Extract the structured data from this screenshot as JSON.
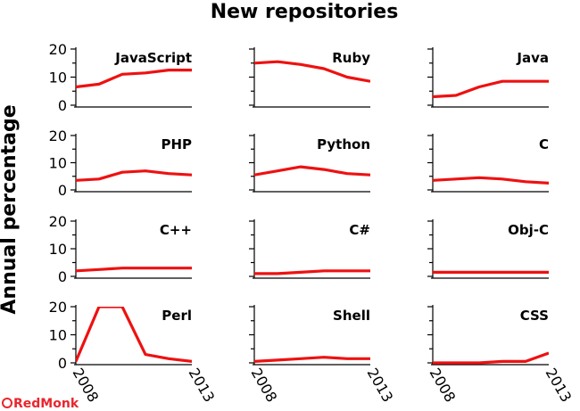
{
  "title": "New repositories",
  "ylabel": "Annual percentage",
  "brand": {
    "logo_text": "RedMonk",
    "logo_color": "#e8262d"
  },
  "colors": {
    "line": "#ee1111",
    "axis": "#000000",
    "text": "#000000"
  },
  "chart_data": {
    "type": "line",
    "layout": "small-multiples 4 rows x 3 columns",
    "x": [
      2008,
      2009,
      2010,
      2011,
      2012,
      2013
    ],
    "x_tick_labels": [
      "2008",
      "2013"
    ],
    "xlim": [
      2008,
      2013
    ],
    "ylim": [
      0,
      20
    ],
    "y_tick_labels": [
      "0",
      "10",
      "20"
    ],
    "grid": false,
    "panels": [
      {
        "name": "JavaScript",
        "values": [
          6.5,
          7.5,
          11,
          11.5,
          12.5,
          12.5
        ]
      },
      {
        "name": "Ruby",
        "values": [
          15,
          15.5,
          14.5,
          13,
          10,
          8.5
        ]
      },
      {
        "name": "Java",
        "values": [
          3,
          3.5,
          6.5,
          8.5,
          8.5,
          8.5
        ]
      },
      {
        "name": "PHP",
        "values": [
          3.5,
          4,
          6.5,
          7,
          6,
          5.5
        ]
      },
      {
        "name": "Python",
        "values": [
          5.5,
          7,
          8.5,
          7.5,
          6,
          5.5
        ]
      },
      {
        "name": "C",
        "values": [
          3.5,
          4,
          4.5,
          4,
          3,
          2.5
        ]
      },
      {
        "name": "C++",
        "values": [
          2,
          2.5,
          3,
          3,
          3,
          3
        ]
      },
      {
        "name": "C#",
        "values": [
          1,
          1,
          1.5,
          2,
          2,
          2
        ]
      },
      {
        "name": "Obj-C",
        "values": [
          1.5,
          1.5,
          1.5,
          1.5,
          1.5,
          1.5
        ]
      },
      {
        "name": "Perl",
        "values": [
          0.5,
          20,
          20,
          3,
          1.5,
          0.5
        ]
      },
      {
        "name": "Shell",
        "values": [
          0.5,
          1,
          1.5,
          2,
          1.5,
          1.5
        ]
      },
      {
        "name": "CSS",
        "values": [
          0,
          0,
          0,
          0.5,
          0.5,
          3.5
        ]
      }
    ]
  }
}
